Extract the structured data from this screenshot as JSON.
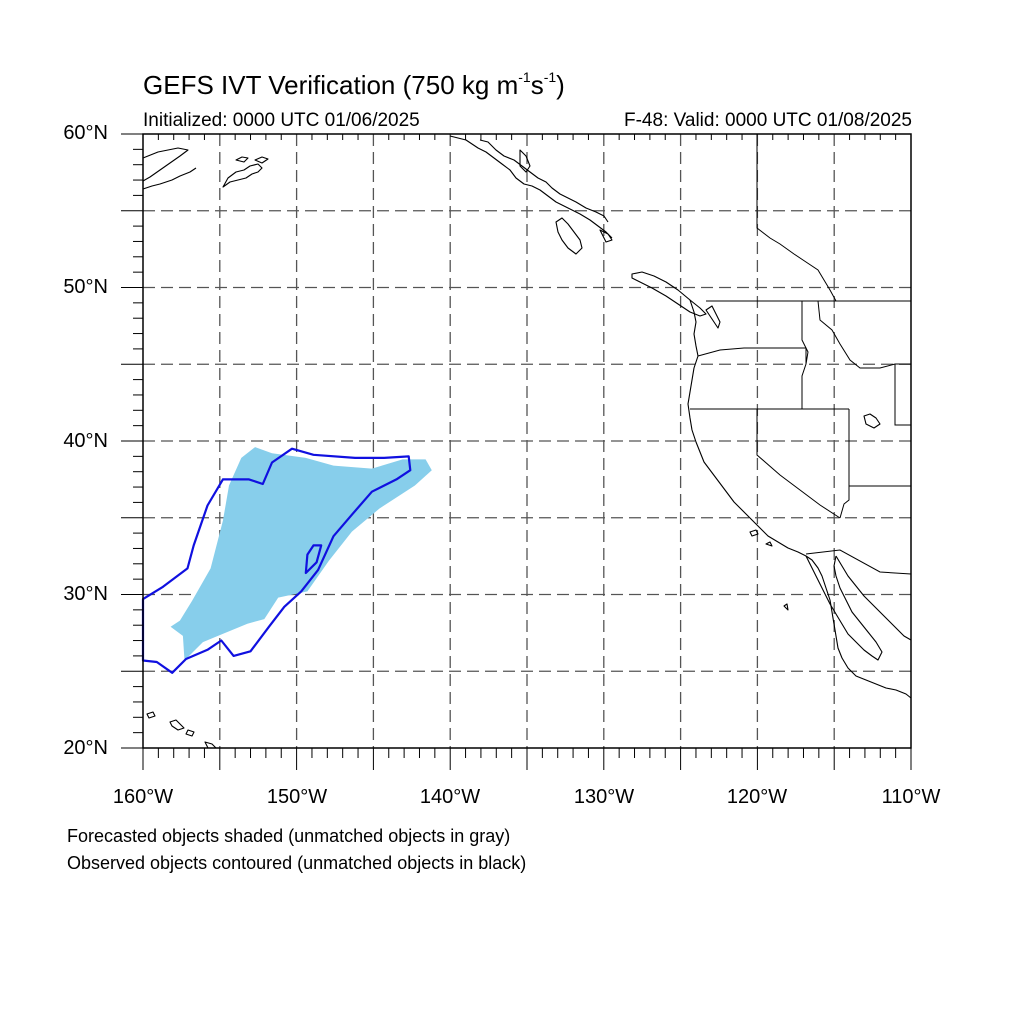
{
  "title_main": "GEFS IVT Verification (750 kg m",
  "title_sup1": "-1",
  "title_mid": "s",
  "title_sup2": "-1",
  "title_end": ")",
  "initialized": "Initialized: 0000 UTC 01/06/2025",
  "valid": "F-48: Valid: 0000 UTC 01/08/2025",
  "lat_labels": [
    "60°N",
    "50°N",
    "40°N",
    "30°N",
    "20°N"
  ],
  "lon_labels": [
    "160°W",
    "150°W",
    "140°W",
    "130°W",
    "120°W",
    "110°W"
  ],
  "footnote_forecast": "Forecasted objects shaded (unmatched objects in gray)",
  "footnote_observed": "Observed objects contoured (unmatched objects in black)",
  "colors": {
    "forecast_fill": "#87ceeb",
    "observed_contour": "#1010e0",
    "coastline": "#000000",
    "grid": "#555555"
  },
  "map_extent": {
    "lon_min": -160,
    "lon_max": -110,
    "lat_min": 20,
    "lat_max": 60
  },
  "forecast_object": [
    [
      -157.6,
      28.3
    ],
    [
      -156.8,
      29.6
    ],
    [
      -155.6,
      31.7
    ],
    [
      -154.8,
      34.8
    ],
    [
      -154.4,
      37.1
    ],
    [
      -153.6,
      38.9
    ],
    [
      -152.7,
      39.6
    ],
    [
      -151.6,
      39.2
    ],
    [
      -149.4,
      38.9
    ],
    [
      -147.6,
      38.4
    ],
    [
      -145.1,
      38.2
    ],
    [
      -143.1,
      38.8
    ],
    [
      -141.6,
      38.8
    ],
    [
      -141.2,
      38.1
    ],
    [
      -142.3,
      37.1
    ],
    [
      -144.6,
      35.6
    ],
    [
      -146.4,
      34.1
    ],
    [
      -147.9,
      32.2
    ],
    [
      -149.3,
      30.2
    ],
    [
      -151.2,
      29.8
    ],
    [
      -152.1,
      28.4
    ],
    [
      -153.2,
      28.1
    ],
    [
      -156.1,
      26.9
    ],
    [
      -157.3,
      25.7
    ],
    [
      -157.4,
      27.3
    ],
    [
      -158.2,
      27.9
    ]
  ],
  "observed_objects": [
    [
      [
        -160.0,
        29.7
      ],
      [
        -158.7,
        30.5
      ],
      [
        -157.1,
        31.7
      ],
      [
        -156.7,
        33.2
      ],
      [
        -155.8,
        35.8
      ],
      [
        -154.8,
        37.5
      ],
      [
        -153.1,
        37.5
      ],
      [
        -152.2,
        37.2
      ],
      [
        -151.6,
        38.6
      ],
      [
        -150.3,
        39.5
      ],
      [
        -148.9,
        39.1
      ],
      [
        -146.2,
        38.9
      ],
      [
        -144.3,
        38.9
      ],
      [
        -142.7,
        39.0
      ],
      [
        -142.6,
        38.1
      ],
      [
        -143.5,
        37.5
      ],
      [
        -145.1,
        36.7
      ],
      [
        -146.4,
        35.2
      ],
      [
        -147.6,
        33.8
      ],
      [
        -148.6,
        31.6
      ],
      [
        -149.7,
        30.2
      ],
      [
        -150.8,
        29.2
      ],
      [
        -151.8,
        27.9
      ],
      [
        -153.0,
        26.3
      ],
      [
        -154.1,
        26.0
      ],
      [
        -154.9,
        27.0
      ],
      [
        -155.8,
        26.4
      ],
      [
        -157.2,
        25.8
      ],
      [
        -158.1,
        24.9
      ],
      [
        -159.1,
        25.6
      ],
      [
        -160.0,
        25.7
      ]
    ],
    [
      [
        -149.3,
        32.6
      ],
      [
        -148.9,
        33.2
      ],
      [
        -148.4,
        33.2
      ],
      [
        -148.7,
        32.1
      ],
      [
        -149.4,
        31.4
      ],
      [
        -149.3,
        32.6
      ]
    ]
  ]
}
